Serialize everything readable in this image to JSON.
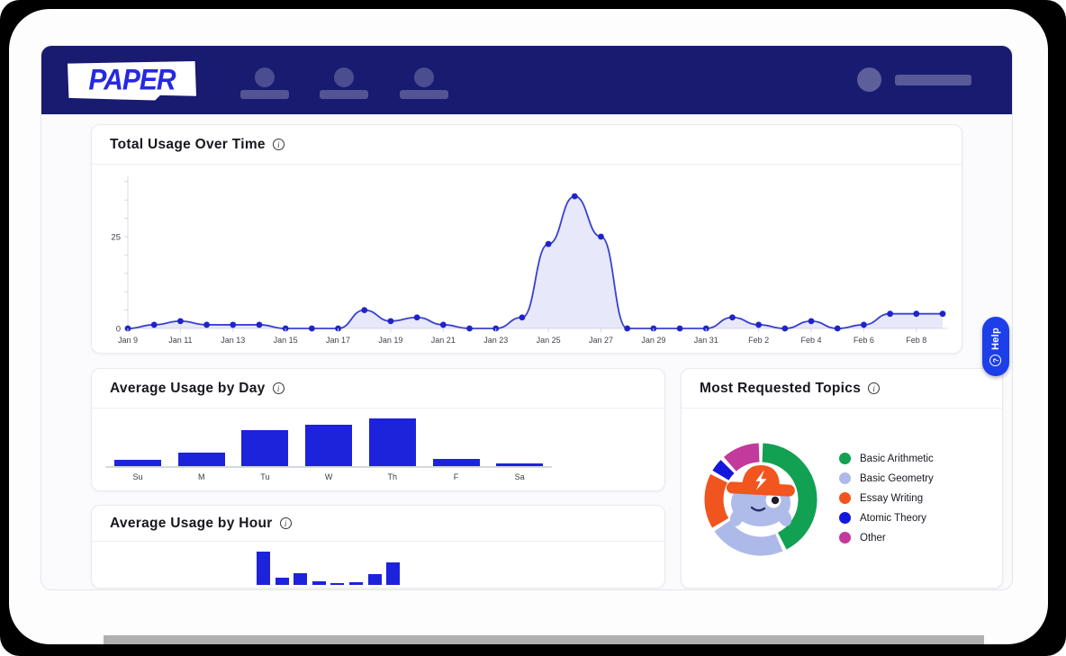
{
  "header": {
    "logo_text": "PAPER",
    "nav_placeholder_count": 3
  },
  "icons": {
    "info": "i",
    "question": "?"
  },
  "help": {
    "label": "Help"
  },
  "colors": {
    "header_navy": "#181b70",
    "logo_blue": "#2629e0",
    "bar_blue": "#1d22db",
    "help_blue": "#1c3fea"
  },
  "chart_data": [
    {
      "id": "total-usage-over-time",
      "type": "area",
      "title": "Total Usage Over Time",
      "x": [
        "Jan 9",
        "Jan 10",
        "Jan 11",
        "Jan 12",
        "Jan 13",
        "Jan 14",
        "Jan 15",
        "Jan 16",
        "Jan 17",
        "Jan 18",
        "Jan 19",
        "Jan 20",
        "Jan 21",
        "Jan 22",
        "Jan 23",
        "Jan 24",
        "Jan 25",
        "Jan 26",
        "Jan 27",
        "Jan 28",
        "Jan 29",
        "Jan 30",
        "Jan 31",
        "Feb 1",
        "Feb 2",
        "Feb 3",
        "Feb 4",
        "Feb 5",
        "Feb 6",
        "Feb 7",
        "Feb 8",
        "Feb 9"
      ],
      "values": [
        0,
        1,
        2,
        1,
        1,
        1,
        0,
        0,
        0,
        5,
        2,
        3,
        1,
        0,
        0,
        3,
        23,
        36,
        25,
        0,
        0,
        0,
        0,
        3,
        1,
        0,
        2,
        0,
        1,
        4,
        4,
        4
      ],
      "x_tick_labels": [
        "Jan 9",
        "Jan 11",
        "Jan 13",
        "Jan 15",
        "Jan 17",
        "Jan 19",
        "Jan 21",
        "Jan 23",
        "Jan 25",
        "Jan 27",
        "Jan 29",
        "Jan 31",
        "Feb 2",
        "Feb 4",
        "Feb 6",
        "Feb 8"
      ],
      "y_tick_labels": [
        "0",
        "25"
      ],
      "y_ticks": [
        0,
        25
      ],
      "ylim": [
        0,
        40
      ],
      "y_minor_tick_step": 5,
      "grid": false,
      "line_color": "#3a41cf",
      "point_color": "#1f24c7",
      "area_color": "rgba(104,113,222,0.16)"
    },
    {
      "id": "average-usage-by-day",
      "type": "bar",
      "title": "Average Usage by Day",
      "categories": [
        "Su",
        "M",
        "Tu",
        "W",
        "Th",
        "F",
        "Sa"
      ],
      "values": [
        0.13,
        0.28,
        0.75,
        0.87,
        1.0,
        0.15,
        0.06
      ],
      "value_scale": "relative — no y-axis labels shown in chart",
      "bar_color": "#1d22db"
    },
    {
      "id": "average-usage-by-hour",
      "type": "bar",
      "title": "Average Usage by Hour",
      "categories": [],
      "x_labels_visible": false,
      "clipped_at_bottom": true,
      "values": [
        1.0,
        0.22,
        0.35,
        0.11,
        0.05,
        0.08,
        0.32,
        0.68
      ],
      "value_scale": "relative — chart is cut off by the bottom of the viewport",
      "bar_color": "#1d22db"
    },
    {
      "id": "most-requested-topics",
      "type": "donut",
      "title": "Most Requested Topics",
      "legend_position": "right",
      "segments": [
        {
          "label": "Basic Arithmetic",
          "percent": 43,
          "color": "#12a053"
        },
        {
          "label": "Basic Geometry",
          "percent": 23,
          "color": "#adbae9"
        },
        {
          "label": "Essay Writing",
          "percent": 17,
          "color": "#f1551f"
        },
        {
          "label": "Atomic Theory",
          "percent": 5,
          "color": "#1418df"
        },
        {
          "label": "Other",
          "percent": 12,
          "color": "#c23a9b"
        }
      ]
    }
  ]
}
